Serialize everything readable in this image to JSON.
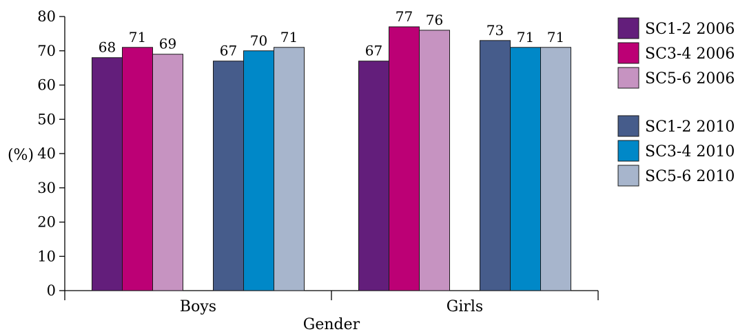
{
  "chart_data": {
    "type": "bar",
    "categories": [
      "Boys",
      "Girls"
    ],
    "xlabel": "Gender",
    "ylabel": "(%)",
    "ylim": [
      0,
      80
    ],
    "yticks": [
      0,
      10,
      20,
      30,
      40,
      50,
      60,
      70,
      80
    ],
    "grid": false,
    "legend_position": "right",
    "series": [
      {
        "name": "SC1-2 2006",
        "color": "#631e7b",
        "values": [
          68,
          67
        ]
      },
      {
        "name": "SC3-4 2006",
        "color": "#bc0075",
        "values": [
          71,
          77
        ]
      },
      {
        "name": "SC5-6 2006",
        "color": "#c693c1",
        "values": [
          69,
          76
        ]
      },
      {
        "name": "SC1-2 2010",
        "color": "#465c8b",
        "values": [
          67,
          73
        ]
      },
      {
        "name": "SC3-4 2010",
        "color": "#0088c8",
        "values": [
          70,
          71
        ]
      },
      {
        "name": "SC5-6 2010",
        "color": "#a7b5cc",
        "values": [
          71,
          71
        ]
      }
    ]
  }
}
